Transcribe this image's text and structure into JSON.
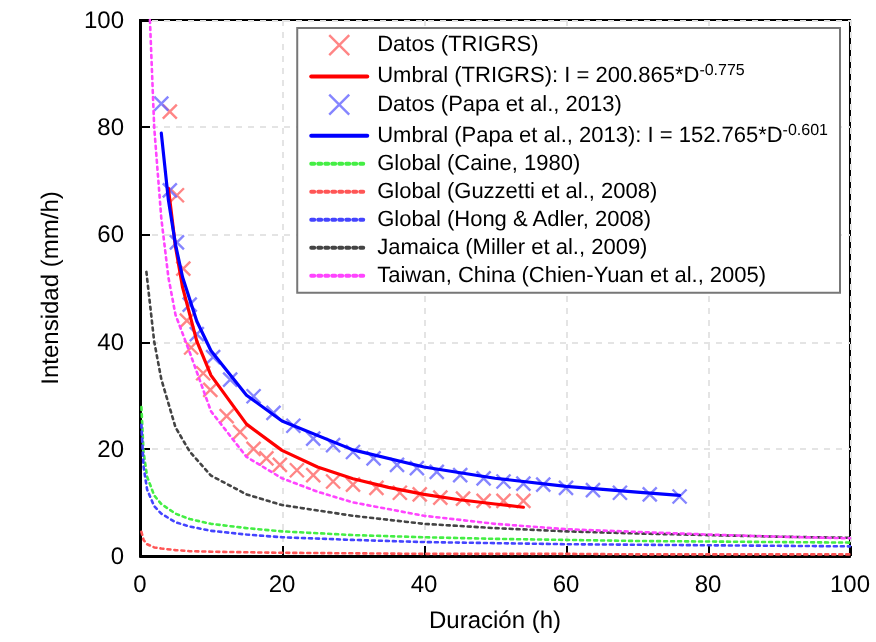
{
  "chart_data": {
    "type": "line",
    "xlabel": "Duración (h)",
    "ylabel": "Intensidad (mm/h)",
    "xlim": [
      0,
      100
    ],
    "ylim": [
      0,
      100
    ],
    "xticks": [
      0,
      20,
      40,
      60,
      80,
      100
    ],
    "yticks": [
      0,
      20,
      40,
      60,
      80,
      100
    ],
    "grid": true,
    "legend": "top right",
    "series": [
      {
        "name": "Datos (TRIGRS)",
        "type": "scatter",
        "marker": "cross",
        "color": "#ff6666",
        "x": [
          4.2,
          5.2,
          6.1,
          6.6,
          7.2,
          8.9,
          9.9,
          12.2,
          14.1,
          16,
          17.8,
          19.7,
          22.1,
          24.4,
          27.2,
          30,
          33.3,
          36.6,
          39.4,
          42.3,
          45.5,
          48.4,
          51.2,
          54
        ],
        "values": [
          82.9,
          67.3,
          53.6,
          43.9,
          38.9,
          34.1,
          31.0,
          26.1,
          23.1,
          20.0,
          18.2,
          17.0,
          16.0,
          15.1,
          13.9,
          13.3,
          12.7,
          11.8,
          11.5,
          10.9,
          10.7,
          10.3,
          10.3,
          10.3
        ]
      },
      {
        "name": "Umbral (TRIGRS): I = 200.865*D$^{-0.775}$",
        "marker": "none",
        "line_style": "solid",
        "color": "#ff0000",
        "x": [
          4,
          5,
          6,
          8,
          10,
          15,
          20,
          25,
          30,
          35,
          40,
          45,
          50,
          54
        ],
        "values": [
          68.6,
          57.7,
          50.1,
          40.1,
          33.7,
          24.6,
          19.7,
          16.6,
          14.4,
          12.8,
          11.5,
          10.5,
          9.7,
          9.1
        ]
      },
      {
        "name": "Datos (Papa et al., 2013)",
        "type": "scatter",
        "marker": "cross",
        "color": "#6666ff",
        "x": [
          3.0,
          4.2,
          5.2,
          7.0,
          8.0,
          10.3,
          12.7,
          16,
          18.8,
          21.6,
          24.4,
          27.2,
          30,
          32.9,
          36.2,
          39,
          41.8,
          45.1,
          48.4,
          51.2,
          54,
          56.8,
          60,
          63.8,
          67.6,
          71.8,
          76
        ],
        "values": [
          84.4,
          68.2,
          58.5,
          46.9,
          41.4,
          37.1,
          32.9,
          29.8,
          26.7,
          24.3,
          21.9,
          20.7,
          19.4,
          18.2,
          17.0,
          16.4,
          15.7,
          15.1,
          14.5,
          13.9,
          13.5,
          13.3,
          12.7,
          12.3,
          11.8,
          11.5,
          11.1
        ]
      },
      {
        "name": "Umbral (Papa et al., 2013): I = 152.765*D$^{-0.601}$",
        "type": "line",
        "marker": "none",
        "line_style": "solid",
        "color": "#0000ff",
        "x": [
          3,
          4,
          5,
          6,
          8,
          10,
          15,
          20,
          30,
          40,
          50,
          60,
          70,
          76
        ],
        "values": [
          78.9,
          66.4,
          58.1,
          52.0,
          43.8,
          38.3,
          30.0,
          25.2,
          19.8,
          16.6,
          14.5,
          13.0,
          11.9,
          11.3
        ]
      },
      {
        "name": "Global (Caine, 1980)",
        "type": "line",
        "marker": "none",
        "line_style": "dotted",
        "color": "#44ee44",
        "x": [
          0.2,
          0.5,
          1,
          2,
          3,
          5,
          7,
          10,
          15,
          20,
          30,
          40,
          50,
          60,
          70,
          80,
          90,
          100
        ],
        "values": [
          27.8,
          19.4,
          14.8,
          11.3,
          9.7,
          7.9,
          6.9,
          6.0,
          5.2,
          4.6,
          3.9,
          3.5,
          3.2,
          3.0,
          2.8,
          2.7,
          2.6,
          2.5
        ]
      },
      {
        "name": "Global (Guzzetti et al., 2008)",
        "type": "line",
        "marker": "none",
        "line_style": "dotted",
        "color": "#ff5555",
        "x": [
          0.2,
          0.5,
          1,
          2,
          3,
          5,
          7,
          10,
          15,
          20,
          30,
          40,
          50,
          60,
          70,
          80,
          90,
          100
        ],
        "values": [
          4.5,
          3.0,
          2.2,
          1.6,
          1.4,
          1.1,
          0.9,
          0.8,
          0.7,
          0.6,
          0.5,
          0.4,
          0.4,
          0.4,
          0.3,
          0.3,
          0.3,
          0.3
        ]
      },
      {
        "name": "Global (Hong & Adler, 2008)",
        "type": "line",
        "marker": "none",
        "line_style": "dotted",
        "color": "#4444ff",
        "x": [
          0.2,
          0.5,
          1,
          2,
          3,
          5,
          7,
          10,
          15,
          20,
          30,
          40,
          50,
          60,
          70,
          80,
          90,
          100
        ],
        "values": [
          24.5,
          16.7,
          12.4,
          9.3,
          7.9,
          6.3,
          5.5,
          4.7,
          4.0,
          3.5,
          3.0,
          2.6,
          2.4,
          2.2,
          2.1,
          2.0,
          1.9,
          1.8
        ]
      },
      {
        "name": "Jamaica (Miller et al., 2009)",
        "type": "line",
        "marker": "none",
        "line_style": "dotted",
        "color": "#444444",
        "x": [
          0.9,
          2,
          3,
          5,
          7,
          10,
          15,
          20,
          30,
          40,
          50,
          60,
          70,
          80,
          90,
          100
        ],
        "values": [
          53,
          40,
          33,
          24,
          19.5,
          15,
          11.5,
          9.5,
          7.5,
          6,
          5.2,
          4.6,
          4.2,
          3.9,
          3.6,
          3.4
        ]
      },
      {
        "name": "Taiwan, China (Chien-Yuan et al., 2005)",
        "type": "line",
        "marker": "none",
        "line_style": "dotted",
        "color": "#ff44ff",
        "x": [
          1.4,
          2,
          3,
          4,
          5,
          7,
          10,
          15,
          20,
          25,
          30,
          40,
          50,
          60,
          70,
          80,
          90,
          100
        ],
        "values": [
          100,
          80,
          63,
          52,
          45,
          38,
          27,
          18.5,
          14.5,
          12,
          10,
          7.5,
          6,
          5,
          4.5,
          4,
          3.6,
          3.3
        ]
      }
    ]
  }
}
